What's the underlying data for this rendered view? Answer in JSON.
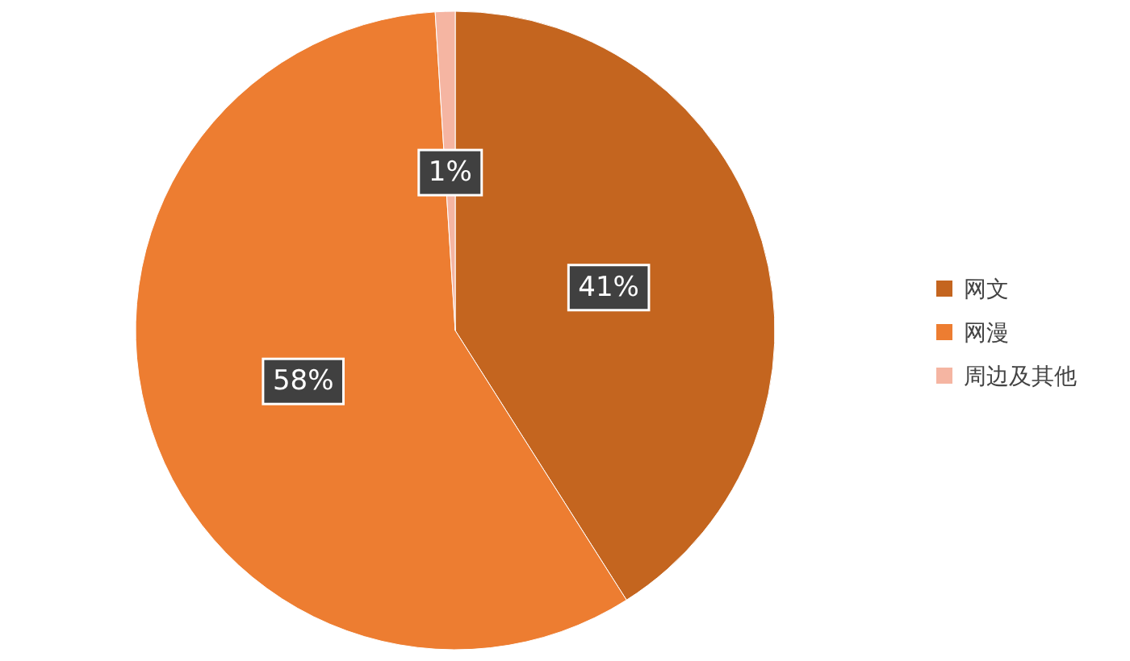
{
  "chart_data": {
    "type": "pie",
    "categories": [
      "网文",
      "网漫",
      "周边及其他"
    ],
    "values": [
      41,
      58,
      1
    ],
    "colors": [
      "#c4651f",
      "#ed7d31",
      "#f5b5a2"
    ],
    "value_labels": [
      "41%",
      "58%",
      "1%"
    ],
    "legend": "right"
  }
}
